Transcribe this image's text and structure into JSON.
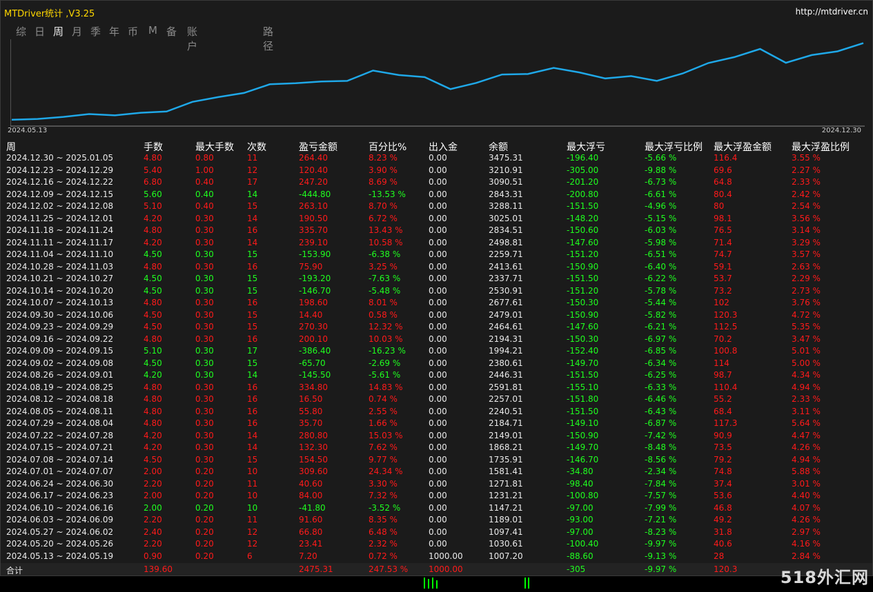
{
  "app": {
    "title": "MTDriver统计 ,V3.25",
    "url": "http://mtdriver.cn"
  },
  "tabs": [
    {
      "label": "综",
      "active": false
    },
    {
      "label": "日",
      "active": false
    },
    {
      "label": "周",
      "active": true
    },
    {
      "label": "月",
      "active": false
    },
    {
      "label": "季",
      "active": false
    },
    {
      "label": "年",
      "active": false
    },
    {
      "label": "币",
      "active": false
    },
    {
      "label": "M",
      "active": false
    },
    {
      "label": "备",
      "active": false
    },
    {
      "label": "账户",
      "active": false
    },
    {
      "label": "路径",
      "active": false
    }
  ],
  "chart": {
    "start_label": "2024.05.13",
    "end_label": "2024.12.30",
    "line_color": "#1fa8e8"
  },
  "chart_data": {
    "type": "line",
    "x": [
      "2024.05.13",
      "2024.05.20",
      "2024.05.27",
      "2024.06.03",
      "2024.06.10",
      "2024.06.17",
      "2024.06.24",
      "2024.07.01",
      "2024.07.08",
      "2024.07.15",
      "2024.07.22",
      "2024.07.29",
      "2024.08.05",
      "2024.08.12",
      "2024.08.19",
      "2024.08.26",
      "2024.09.02",
      "2024.09.09",
      "2024.09.16",
      "2024.09.23",
      "2024.09.30",
      "2024.10.07",
      "2024.10.14",
      "2024.10.21",
      "2024.10.28",
      "2024.11.04",
      "2024.11.11",
      "2024.11.18",
      "2024.11.25",
      "2024.12.02",
      "2024.12.09",
      "2024.12.16",
      "2024.12.23",
      "2024.12.30"
    ],
    "values": [
      1007.2,
      1030.61,
      1097.41,
      1189.01,
      1147.21,
      1231.21,
      1271.81,
      1581.41,
      1735.91,
      1868.21,
      2149.01,
      2184.71,
      2240.51,
      2257.01,
      2591.81,
      2446.31,
      2380.61,
      1994.21,
      2194.31,
      2464.61,
      2479.01,
      2677.61,
      2530.91,
      2337.71,
      2413.61,
      2259.71,
      2498.81,
      2834.51,
      3025.01,
      3288.11,
      2843.31,
      3090.51,
      3210.91,
      3475.31
    ]
  },
  "headers": [
    "周",
    "手数",
    "最大手数",
    "次数",
    "盈亏金额",
    "百分比%",
    "出入金",
    "余额",
    "最大浮亏",
    "最大浮亏比例",
    "最大浮盈金额",
    "最大浮盈比例"
  ],
  "rows": [
    {
      "week": "2024.12.30 ~ 2025.01.05",
      "lots": "4.80",
      "max_lots": "0.80",
      "count": "11",
      "pnl": "264.40",
      "pct": "8.23 %",
      "io": "0.00",
      "balance": "3475.31",
      "max_dd": "-196.40",
      "max_dd_pct": "-5.66 %",
      "max_fp": "116.4",
      "max_fp_pct": "3.55 %"
    },
    {
      "week": "2024.12.23 ~ 2024.12.29",
      "lots": "5.40",
      "max_lots": "1.00",
      "count": "12",
      "pnl": "120.40",
      "pct": "3.90 %",
      "io": "0.00",
      "balance": "3210.91",
      "max_dd": "-305.00",
      "max_dd_pct": "-9.88 %",
      "max_fp": "69.6",
      "max_fp_pct": "2.27 %"
    },
    {
      "week": "2024.12.16 ~ 2024.12.22",
      "lots": "6.80",
      "max_lots": "0.40",
      "count": "17",
      "pnl": "247.20",
      "pct": "8.69 %",
      "io": "0.00",
      "balance": "3090.51",
      "max_dd": "-201.20",
      "max_dd_pct": "-6.73 %",
      "max_fp": "64.8",
      "max_fp_pct": "2.33 %"
    },
    {
      "week": "2024.12.09 ~ 2024.12.15",
      "lots": "5.60",
      "max_lots": "0.40",
      "count": "14",
      "pnl": "-444.80",
      "pct": "-13.53 %",
      "io": "0.00",
      "balance": "2843.31",
      "max_dd": "-200.80",
      "max_dd_pct": "-6.61 %",
      "max_fp": "80.4",
      "max_fp_pct": "2.42 %"
    },
    {
      "week": "2024.12.02 ~ 2024.12.08",
      "lots": "5.10",
      "max_lots": "0.40",
      "count": "15",
      "pnl": "263.10",
      "pct": "8.70 %",
      "io": "0.00",
      "balance": "3288.11",
      "max_dd": "-151.50",
      "max_dd_pct": "-4.96 %",
      "max_fp": "80",
      "max_fp_pct": "2.54 %"
    },
    {
      "week": "2024.11.25 ~ 2024.12.01",
      "lots": "4.20",
      "max_lots": "0.30",
      "count": "14",
      "pnl": "190.50",
      "pct": "6.72 %",
      "io": "0.00",
      "balance": "3025.01",
      "max_dd": "-148.20",
      "max_dd_pct": "-5.15 %",
      "max_fp": "98.1",
      "max_fp_pct": "3.56 %"
    },
    {
      "week": "2024.11.18 ~ 2024.11.24",
      "lots": "4.80",
      "max_lots": "0.30",
      "count": "16",
      "pnl": "335.70",
      "pct": "13.43 %",
      "io": "0.00",
      "balance": "2834.51",
      "max_dd": "-150.60",
      "max_dd_pct": "-6.03 %",
      "max_fp": "76.5",
      "max_fp_pct": "3.14 %"
    },
    {
      "week": "2024.11.11 ~ 2024.11.17",
      "lots": "4.20",
      "max_lots": "0.30",
      "count": "14",
      "pnl": "239.10",
      "pct": "10.58 %",
      "io": "0.00",
      "balance": "2498.81",
      "max_dd": "-147.60",
      "max_dd_pct": "-5.98 %",
      "max_fp": "71.4",
      "max_fp_pct": "3.29 %"
    },
    {
      "week": "2024.11.04 ~ 2024.11.10",
      "lots": "4.50",
      "max_lots": "0.30",
      "count": "15",
      "pnl": "-153.90",
      "pct": "-6.38 %",
      "io": "0.00",
      "balance": "2259.71",
      "max_dd": "-151.20",
      "max_dd_pct": "-6.51 %",
      "max_fp": "74.7",
      "max_fp_pct": "3.57 %"
    },
    {
      "week": "2024.10.28 ~ 2024.11.03",
      "lots": "4.80",
      "max_lots": "0.30",
      "count": "16",
      "pnl": "75.90",
      "pct": "3.25 %",
      "io": "0.00",
      "balance": "2413.61",
      "max_dd": "-150.90",
      "max_dd_pct": "-6.40 %",
      "max_fp": "59.1",
      "max_fp_pct": "2.63 %"
    },
    {
      "week": "2024.10.21 ~ 2024.10.27",
      "lots": "4.50",
      "max_lots": "0.30",
      "count": "15",
      "pnl": "-193.20",
      "pct": "-7.63 %",
      "io": "0.00",
      "balance": "2337.71",
      "max_dd": "-151.50",
      "max_dd_pct": "-6.22 %",
      "max_fp": "53.7",
      "max_fp_pct": "2.29 %"
    },
    {
      "week": "2024.10.14 ~ 2024.10.20",
      "lots": "4.50",
      "max_lots": "0.30",
      "count": "15",
      "pnl": "-146.70",
      "pct": "-5.48 %",
      "io": "0.00",
      "balance": "2530.91",
      "max_dd": "-151.20",
      "max_dd_pct": "-5.78 %",
      "max_fp": "73.2",
      "max_fp_pct": "2.73 %"
    },
    {
      "week": "2024.10.07 ~ 2024.10.13",
      "lots": "4.80",
      "max_lots": "0.30",
      "count": "16",
      "pnl": "198.60",
      "pct": "8.01 %",
      "io": "0.00",
      "balance": "2677.61",
      "max_dd": "-150.30",
      "max_dd_pct": "-5.44 %",
      "max_fp": "102",
      "max_fp_pct": "3.76 %"
    },
    {
      "week": "2024.09.30 ~ 2024.10.06",
      "lots": "4.50",
      "max_lots": "0.30",
      "count": "15",
      "pnl": "14.40",
      "pct": "0.58 %",
      "io": "0.00",
      "balance": "2479.01",
      "max_dd": "-150.90",
      "max_dd_pct": "-5.82 %",
      "max_fp": "120.3",
      "max_fp_pct": "4.72 %"
    },
    {
      "week": "2024.09.23 ~ 2024.09.29",
      "lots": "4.50",
      "max_lots": "0.30",
      "count": "15",
      "pnl": "270.30",
      "pct": "12.32 %",
      "io": "0.00",
      "balance": "2464.61",
      "max_dd": "-147.60",
      "max_dd_pct": "-6.21 %",
      "max_fp": "112.5",
      "max_fp_pct": "5.35 %"
    },
    {
      "week": "2024.09.16 ~ 2024.09.22",
      "lots": "4.80",
      "max_lots": "0.30",
      "count": "16",
      "pnl": "200.10",
      "pct": "10.03 %",
      "io": "0.00",
      "balance": "2194.31",
      "max_dd": "-150.30",
      "max_dd_pct": "-6.97 %",
      "max_fp": "70.2",
      "max_fp_pct": "3.47 %"
    },
    {
      "week": "2024.09.09 ~ 2024.09.15",
      "lots": "5.10",
      "max_lots": "0.30",
      "count": "17",
      "pnl": "-386.40",
      "pct": "-16.23 %",
      "io": "0.00",
      "balance": "1994.21",
      "max_dd": "-152.40",
      "max_dd_pct": "-6.85 %",
      "max_fp": "100.8",
      "max_fp_pct": "5.01 %"
    },
    {
      "week": "2024.09.02 ~ 2024.09.08",
      "lots": "4.50",
      "max_lots": "0.30",
      "count": "15",
      "pnl": "-65.70",
      "pct": "-2.69 %",
      "io": "0.00",
      "balance": "2380.61",
      "max_dd": "-149.70",
      "max_dd_pct": "-6.34 %",
      "max_fp": "114",
      "max_fp_pct": "5.00 %"
    },
    {
      "week": "2024.08.26 ~ 2024.09.01",
      "lots": "4.20",
      "max_lots": "0.30",
      "count": "14",
      "pnl": "-145.50",
      "pct": "-5.61 %",
      "io": "0.00",
      "balance": "2446.31",
      "max_dd": "-151.50",
      "max_dd_pct": "-6.25 %",
      "max_fp": "98.7",
      "max_fp_pct": "4.34 %"
    },
    {
      "week": "2024.08.19 ~ 2024.08.25",
      "lots": "4.80",
      "max_lots": "0.30",
      "count": "16",
      "pnl": "334.80",
      "pct": "14.83 %",
      "io": "0.00",
      "balance": "2591.81",
      "max_dd": "-155.10",
      "max_dd_pct": "-6.33 %",
      "max_fp": "110.4",
      "max_fp_pct": "4.94 %"
    },
    {
      "week": "2024.08.12 ~ 2024.08.18",
      "lots": "4.80",
      "max_lots": "0.30",
      "count": "16",
      "pnl": "16.50",
      "pct": "0.74 %",
      "io": "0.00",
      "balance": "2257.01",
      "max_dd": "-151.80",
      "max_dd_pct": "-6.46 %",
      "max_fp": "55.2",
      "max_fp_pct": "2.33 %"
    },
    {
      "week": "2024.08.05 ~ 2024.08.11",
      "lots": "4.80",
      "max_lots": "0.30",
      "count": "16",
      "pnl": "55.80",
      "pct": "2.55 %",
      "io": "0.00",
      "balance": "2240.51",
      "max_dd": "-151.50",
      "max_dd_pct": "-6.43 %",
      "max_fp": "68.4",
      "max_fp_pct": "3.11 %"
    },
    {
      "week": "2024.07.29 ~ 2024.08.04",
      "lots": "4.80",
      "max_lots": "0.30",
      "count": "16",
      "pnl": "35.70",
      "pct": "1.66 %",
      "io": "0.00",
      "balance": "2184.71",
      "max_dd": "-149.10",
      "max_dd_pct": "-6.87 %",
      "max_fp": "117.3",
      "max_fp_pct": "5.64 %"
    },
    {
      "week": "2024.07.22 ~ 2024.07.28",
      "lots": "4.20",
      "max_lots": "0.30",
      "count": "14",
      "pnl": "280.80",
      "pct": "15.03 %",
      "io": "0.00",
      "balance": "2149.01",
      "max_dd": "-150.90",
      "max_dd_pct": "-7.42 %",
      "max_fp": "90.9",
      "max_fp_pct": "4.47 %"
    },
    {
      "week": "2024.07.15 ~ 2024.07.21",
      "lots": "4.20",
      "max_lots": "0.30",
      "count": "14",
      "pnl": "132.30",
      "pct": "7.62 %",
      "io": "0.00",
      "balance": "1868.21",
      "max_dd": "-149.70",
      "max_dd_pct": "-8.48 %",
      "max_fp": "73.5",
      "max_fp_pct": "4.26 %"
    },
    {
      "week": "2024.07.08 ~ 2024.07.14",
      "lots": "4.50",
      "max_lots": "0.30",
      "count": "15",
      "pnl": "154.50",
      "pct": "9.77 %",
      "io": "0.00",
      "balance": "1735.91",
      "max_dd": "-146.70",
      "max_dd_pct": "-8.56 %",
      "max_fp": "79.2",
      "max_fp_pct": "4.94 %"
    },
    {
      "week": "2024.07.01 ~ 2024.07.07",
      "lots": "2.00",
      "max_lots": "0.20",
      "count": "10",
      "pnl": "309.60",
      "pct": "24.34 %",
      "io": "0.00",
      "balance": "1581.41",
      "max_dd": "-34.80",
      "max_dd_pct": "-2.34 %",
      "max_fp": "74.8",
      "max_fp_pct": "5.88 %"
    },
    {
      "week": "2024.06.24 ~ 2024.06.30",
      "lots": "2.20",
      "max_lots": "0.20",
      "count": "11",
      "pnl": "40.60",
      "pct": "3.30 %",
      "io": "0.00",
      "balance": "1271.81",
      "max_dd": "-98.40",
      "max_dd_pct": "-7.84 %",
      "max_fp": "37.4",
      "max_fp_pct": "3.01 %"
    },
    {
      "week": "2024.06.17 ~ 2024.06.23",
      "lots": "2.00",
      "max_lots": "0.20",
      "count": "10",
      "pnl": "84.00",
      "pct": "7.32 %",
      "io": "0.00",
      "balance": "1231.21",
      "max_dd": "-100.80",
      "max_dd_pct": "-7.57 %",
      "max_fp": "53.6",
      "max_fp_pct": "4.40 %"
    },
    {
      "week": "2024.06.10 ~ 2024.06.16",
      "lots": "2.00",
      "max_lots": "0.20",
      "count": "10",
      "pnl": "-41.80",
      "pct": "-3.52 %",
      "io": "0.00",
      "balance": "1147.21",
      "max_dd": "-97.00",
      "max_dd_pct": "-7.99 %",
      "max_fp": "46.8",
      "max_fp_pct": "4.07 %"
    },
    {
      "week": "2024.06.03 ~ 2024.06.09",
      "lots": "2.20",
      "max_lots": "0.20",
      "count": "11",
      "pnl": "91.60",
      "pct": "8.35 %",
      "io": "0.00",
      "balance": "1189.01",
      "max_dd": "-93.00",
      "max_dd_pct": "-7.21 %",
      "max_fp": "49.2",
      "max_fp_pct": "4.26 %"
    },
    {
      "week": "2024.05.27 ~ 2024.06.02",
      "lots": "2.40",
      "max_lots": "0.20",
      "count": "12",
      "pnl": "66.80",
      "pct": "6.48 %",
      "io": "0.00",
      "balance": "1097.41",
      "max_dd": "-97.00",
      "max_dd_pct": "-8.23 %",
      "max_fp": "31.8",
      "max_fp_pct": "2.97 %"
    },
    {
      "week": "2024.05.20 ~ 2024.05.26",
      "lots": "2.20",
      "max_lots": "0.20",
      "count": "12",
      "pnl": "23.41",
      "pct": "2.32 %",
      "io": "0.00",
      "balance": "1030.61",
      "max_dd": "-100.40",
      "max_dd_pct": "-9.97 %",
      "max_fp": "40.6",
      "max_fp_pct": "4.16 %"
    },
    {
      "week": "2024.05.13 ~ 2024.05.19",
      "lots": "0.90",
      "max_lots": "0.20",
      "count": "6",
      "pnl": "7.20",
      "pct": "0.72 %",
      "io": "1000.00",
      "balance": "1007.20",
      "max_dd": "-88.60",
      "max_dd_pct": "-9.13 %",
      "max_fp": "28",
      "max_fp_pct": "2.84 %"
    }
  ],
  "total": {
    "label": "合计",
    "lots": "139.60",
    "pnl": "2475.31",
    "pct": "247.53 %",
    "io": "1000.00",
    "max_dd": "-305",
    "max_dd_pct": "-9.97 %",
    "max_fp": "120.3"
  },
  "watermark": "518外汇网"
}
